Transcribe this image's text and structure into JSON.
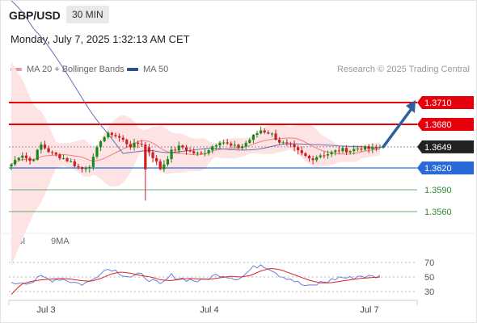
{
  "header": {
    "symbol": "GBP/USD",
    "interval": "30 MIN",
    "datetime": "Monday, July 7, 2025 1:32:13 AM CET"
  },
  "legend": {
    "ma_bollinger": "MA 20 + Bollinger Bands",
    "ma50": "MA 50",
    "credit": "Research © 2025 Trading Central"
  },
  "rsi_legend": {
    "rsi": "RSI",
    "ma9": "9MA"
  },
  "colors": {
    "resistance": "#e5000b",
    "support": "#2a6ad8",
    "target": "#2d8a2d",
    "bollinger_fill": "#fde3e3",
    "ma20": "#f08080",
    "ma50": "#6b6fb0",
    "bull_candle": "#1b8a1b",
    "bear_candle": "#cc1f1f",
    "arrow": "#2f5f9e",
    "rsi_line": "#6a7fd8",
    "rsi_ma": "#e02020"
  },
  "chart_data": {
    "type": "candlestick",
    "price_axis": {
      "range": [
        1.354,
        1.374
      ]
    },
    "levels": [
      {
        "label": "1.3710",
        "value": 1.371,
        "kind": "resistance"
      },
      {
        "label": "1.3680",
        "value": 1.368,
        "kind": "resistance"
      },
      {
        "label": "1.3649",
        "value": 1.3649,
        "kind": "last"
      },
      {
        "label": "1.3620",
        "value": 1.362,
        "kind": "support"
      },
      {
        "label": "1.3590",
        "value": 1.359,
        "kind": "target"
      },
      {
        "label": "1.3560",
        "value": 1.356,
        "kind": "target"
      }
    ],
    "projection": {
      "from": 1.3649,
      "to": 1.371
    },
    "x_ticks": [
      "Jul 3",
      "Jul 4",
      "Jul 7"
    ],
    "price_anchors": [
      1.3625,
      1.364,
      1.3628,
      1.3652,
      1.364,
      1.3635,
      1.3628,
      1.3618,
      1.3625,
      1.366,
      1.3668,
      1.366,
      1.365,
      1.3655,
      1.364,
      1.3618,
      1.3642,
      1.365,
      1.3642,
      1.3638,
      1.3648,
      1.3658,
      1.365,
      1.3648,
      1.366,
      1.3672,
      1.3668,
      1.3655,
      1.365,
      1.364,
      1.3632,
      1.3638,
      1.364,
      1.3645,
      1.3644,
      1.3648,
      1.3646,
      1.3649
    ],
    "rsi": {
      "ticks": [
        70,
        50,
        30
      ],
      "range": [
        20,
        80
      ],
      "rsi_anchors": [
        40,
        44,
        42,
        50,
        46,
        48,
        44,
        40,
        44,
        58,
        62,
        55,
        50,
        53,
        46,
        38,
        52,
        48,
        46,
        44,
        50,
        54,
        50,
        48,
        60,
        68,
        62,
        52,
        48,
        40,
        36,
        42,
        45,
        50,
        48,
        52,
        50,
        51
      ],
      "ma_anchors": [
        26,
        40,
        44,
        46,
        47,
        48,
        47,
        45,
        44,
        48,
        54,
        57,
        55,
        52,
        50,
        46,
        45,
        47,
        48,
        47,
        47,
        49,
        51,
        50,
        52,
        58,
        62,
        60,
        55,
        50,
        45,
        42,
        42,
        44,
        46,
        48,
        49,
        50
      ]
    }
  }
}
